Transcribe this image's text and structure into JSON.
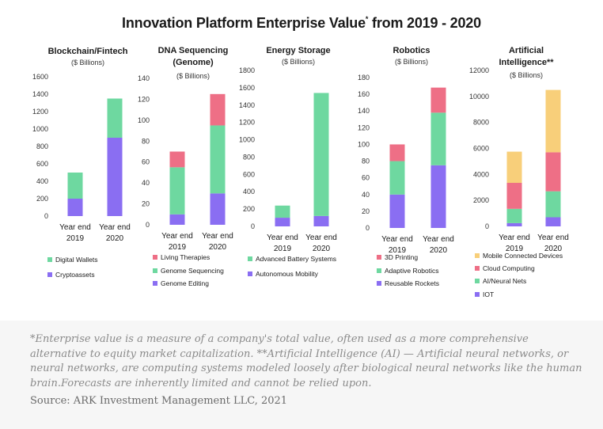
{
  "title": "Innovation Platform Enterprise Value",
  "title_sup": "*",
  "title_suffix": "from 2019 - 2020",
  "footnote": "*Enterprise value is a measure of a company's total value, often used as a more comprehensive alternative to equity market capitalization. **Artificial Intelligence (AI) — Artificial neural networks, or neural networks, are computing systems modeled loosely after biological neural networks like the human brain.Forecasts are inherently limited and cannot be relied upon.",
  "source": "Source: ARK Investment Management LLC, 2021",
  "colors": {
    "purple": "#8a6ef2",
    "green": "#6ed8a0",
    "pink": "#ee6f86",
    "yellow": "#f8cf7a"
  },
  "chart_data": [
    {
      "type": "bar",
      "stacked": true,
      "title": [
        "Blockchain/Fintech"
      ],
      "subtitle": "($ Billions)",
      "categories": [
        "Year end 2019",
        "Year end 2020"
      ],
      "ylim": [
        0,
        1600
      ],
      "yticks": [
        0,
        200,
        400,
        600,
        800,
        1000,
        1200,
        1400,
        1600
      ],
      "series": [
        {
          "name": "Cryptoassets",
          "color": "#8a6ef2",
          "values": [
            200,
            900
          ]
        },
        {
          "name": "Digital Wallets",
          "color": "#6ed8a0",
          "values": [
            300,
            450
          ]
        }
      ]
    },
    {
      "type": "bar",
      "stacked": true,
      "title": [
        "DNA Sequencing",
        "(Genome)"
      ],
      "subtitle": "($ Billions)",
      "categories": [
        "Year end 2019",
        "Year end 2020"
      ],
      "ylim": [
        0,
        140
      ],
      "yticks": [
        0,
        20,
        40,
        60,
        80,
        100,
        120,
        140
      ],
      "series": [
        {
          "name": "Genome Editing",
          "color": "#8a6ef2",
          "values": [
            10,
            30
          ]
        },
        {
          "name": "Genome Sequencing",
          "color": "#6ed8a0",
          "values": [
            45,
            65
          ]
        },
        {
          "name": "Living Therapies",
          "color": "#ee6f86",
          "values": [
            15,
            30
          ]
        }
      ]
    },
    {
      "type": "bar",
      "stacked": true,
      "title": [
        "Energy Storage"
      ],
      "subtitle": "($ Billions)",
      "categories": [
        "Year end 2019",
        "Year end 2020"
      ],
      "ylim": [
        0,
        1800
      ],
      "yticks": [
        0,
        200,
        400,
        600,
        800,
        1000,
        1200,
        1400,
        1600,
        1800
      ],
      "series": [
        {
          "name": "Autonomous Mobility",
          "color": "#8a6ef2",
          "values": [
            100,
            120
          ]
        },
        {
          "name": "Advanced Battery Systems",
          "color": "#6ed8a0",
          "values": [
            140,
            1420
          ]
        }
      ]
    },
    {
      "type": "bar",
      "stacked": true,
      "title": [
        "Robotics"
      ],
      "subtitle": "($ Billions)",
      "categories": [
        "Year end 2019",
        "Year end 2020"
      ],
      "ylim": [
        0,
        180
      ],
      "yticks": [
        0,
        20,
        40,
        60,
        80,
        100,
        120,
        140,
        160,
        180
      ],
      "series": [
        {
          "name": "Reusable Rockets",
          "color": "#8a6ef2",
          "values": [
            40,
            75
          ]
        },
        {
          "name": "Adaptive Robotics",
          "color": "#6ed8a0",
          "values": [
            40,
            63
          ]
        },
        {
          "name": "3D Printing",
          "color": "#ee6f86",
          "values": [
            20,
            30
          ]
        }
      ]
    },
    {
      "type": "bar",
      "stacked": true,
      "title": [
        "Artificial",
        "Intelligence**"
      ],
      "subtitle": "($ Billions)",
      "categories": [
        "Year end 2019",
        "Year end 2020"
      ],
      "ylim": [
        0,
        12000
      ],
      "yticks": [
        0,
        2000,
        4000,
        6000,
        8000,
        10000,
        12000
      ],
      "series": [
        {
          "name": "IOT",
          "color": "#8a6ef2",
          "values": [
            250,
            700
          ]
        },
        {
          "name": "AI/Neural Nets",
          "color": "#6ed8a0",
          "values": [
            1100,
            2000
          ]
        },
        {
          "name": "Cloud Computing",
          "color": "#ee6f86",
          "values": [
            2000,
            3000
          ]
        },
        {
          "name": "Mobile Connected Devices",
          "color": "#f8cf7a",
          "values": [
            2400,
            4800
          ]
        }
      ]
    }
  ]
}
